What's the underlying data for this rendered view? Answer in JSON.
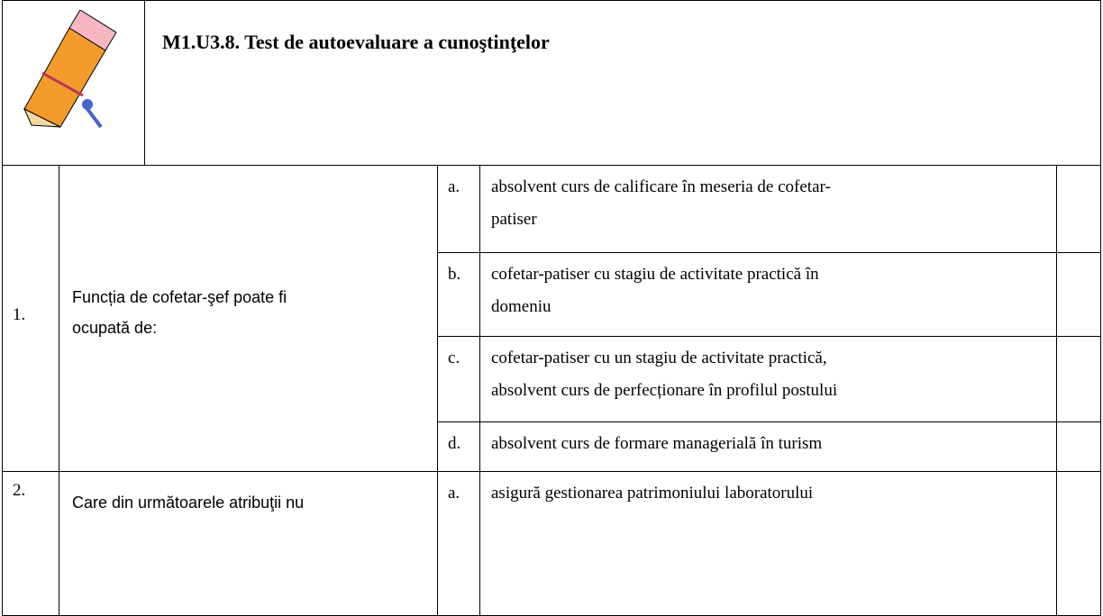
{
  "header": {
    "title": "M1.U3.8. Test de autoevaluare a cunoştinţelor"
  },
  "questions": [
    {
      "number": "1.",
      "text": [
        "Funcția de cofetar-şef poate fi",
        "ocupată de:"
      ],
      "options": [
        {
          "letter": "a.",
          "text": [
            "absolvent curs de calificare în meseria de cofetar-",
            "patiser"
          ]
        },
        {
          "letter": "b.",
          "text": [
            "cofetar-patiser cu stagiu de activitate practică în",
            "domeniu"
          ]
        },
        {
          "letter": "c.",
          "text": [
            "cofetar-patiser cu un stagiu de activitate practică,",
            "absolvent curs de perfecționare în profilul postului"
          ]
        },
        {
          "letter": "d.",
          "text": [
            "absolvent curs de formare managerială în turism"
          ]
        }
      ]
    },
    {
      "number": "2.",
      "text": [
        "Care din următoarele atribuţii nu"
      ],
      "options": [
        {
          "letter": "a.",
          "text": [
            "asigură gestionarea patrimoniului laboratorului"
          ]
        }
      ]
    }
  ]
}
